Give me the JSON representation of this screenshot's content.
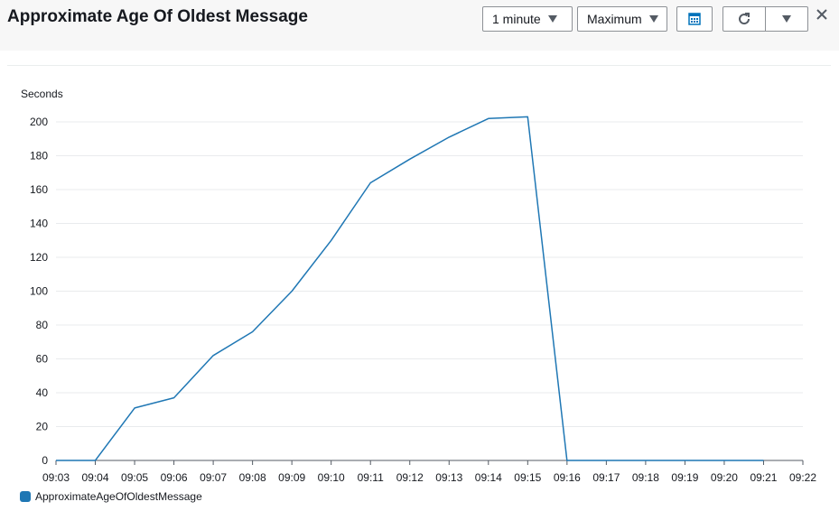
{
  "widget": {
    "title": "Approximate Age Of Oldest Message",
    "period_label": "1 minute",
    "statistic_label": "Maximum",
    "icons": {
      "calendar": "calendar-icon",
      "refresh": "refresh-icon",
      "dropdown": "chevron-down-icon",
      "close": "close-icon"
    }
  },
  "colors": {
    "series": "#1f77b4",
    "grid": "#e9ebed",
    "axis": "#545b64",
    "calendar_icon": "#0073bb"
  },
  "chart_data": {
    "type": "line",
    "ylabel": "Seconds",
    "xlabel": "",
    "ylim": [
      0,
      210
    ],
    "yticks": [
      0,
      20,
      40,
      60,
      80,
      100,
      120,
      140,
      160,
      180,
      200
    ],
    "xticks": [
      "09:03",
      "09:04",
      "09:05",
      "09:06",
      "09:07",
      "09:08",
      "09:09",
      "09:10",
      "09:11",
      "09:12",
      "09:13",
      "09:14",
      "09:15",
      "09:16",
      "09:17",
      "09:18",
      "09:19",
      "09:20",
      "09:21",
      "09:22"
    ],
    "grid": true,
    "legend_position": "bottom-left",
    "series": [
      {
        "name": "ApproximateAgeOfOldestMessage",
        "color": "#1f77b4",
        "x": [
          "09:03",
          "09:04",
          "09:05",
          "09:06",
          "09:07",
          "09:08",
          "09:09",
          "09:10",
          "09:11",
          "09:12",
          "09:13",
          "09:14",
          "09:15",
          "09:16",
          "09:17",
          "09:18",
          "09:19",
          "09:20",
          "09:21"
        ],
        "values": [
          0,
          0,
          31,
          37,
          62,
          76,
          100,
          130,
          164,
          178,
          191,
          202,
          203,
          0,
          0,
          0,
          0,
          0,
          0
        ]
      }
    ]
  }
}
